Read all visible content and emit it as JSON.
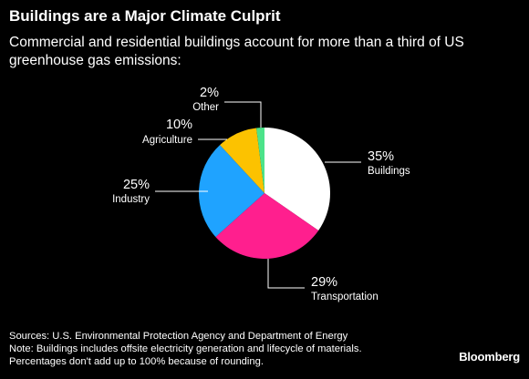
{
  "header": {
    "title": "Buildings are a Major Climate Culprit",
    "subtitle": "Commercial and residential buildings account for more than a third of US greenhouse gas emissions:"
  },
  "chart_data": {
    "type": "pie",
    "start": "12 o'clock, clockwise",
    "slices": [
      {
        "label": "Buildings",
        "value": 35,
        "display": "35%",
        "color": "#ffffff"
      },
      {
        "label": "Transportation",
        "value": 29,
        "display": "29%",
        "color": "#ff1f8e"
      },
      {
        "label": "Industry",
        "value": 25,
        "display": "25%",
        "color": "#1fa3ff"
      },
      {
        "label": "Agriculture",
        "value": 10,
        "display": "10%",
        "color": "#fcc200"
      },
      {
        "label": "Other",
        "value": 2,
        "display": "2%",
        "color": "#4ce38a"
      }
    ]
  },
  "footer": {
    "sources": "Sources: U.S. Environmental Protection Agency and Department of Energy",
    "note": "Note: Buildings includes offsite electricity generation and lifecycle of materials.",
    "rounding": "Percentages don't add up to 100% because of rounding."
  },
  "brand": "Bloomberg"
}
